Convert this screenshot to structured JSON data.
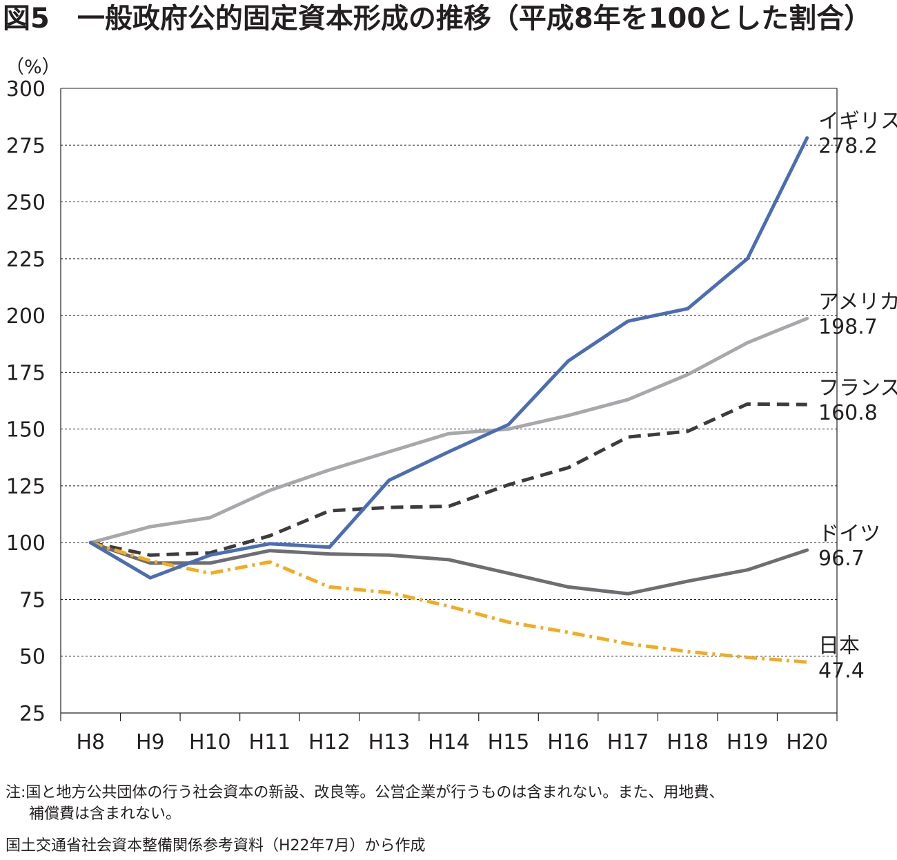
{
  "title": "図5　一般政府公的固定資本形成の推移（平成8年を100とした割合）",
  "notes": [
    "注:国と地方公共団体の行う社会資本の新設、改良等。公営企業が行うものは含まれない。また、用地費、",
    "補償費は含まれない。",
    "国土交通省社会資本整備関係参考資料（H22年7月）から作成"
  ],
  "chart_data": {
    "type": "line",
    "title": "図5　一般政府公的固定資本形成の推移（平成8年を100とした割合）",
    "ylabel": "（%）",
    "xlabel": "",
    "ylim": [
      25,
      300
    ],
    "yticks": [
      "300",
      "275",
      "250",
      "225",
      "200",
      "175",
      "150",
      "125",
      "100",
      "75",
      "50",
      "25"
    ],
    "grid": "horizontal dashed",
    "legend": "end-of-line labels on right",
    "x": [
      "H8",
      "H9",
      "H10",
      "H11",
      "H12",
      "H13",
      "H14",
      "H15",
      "H16",
      "H17",
      "H18",
      "H19",
      "H20"
    ],
    "series": [
      {
        "name": "アメリカ",
        "end_label": "198.7",
        "color": "#a6a8ab",
        "style": "solid",
        "values": [
          100,
          107,
          111,
          123,
          132,
          140,
          148,
          150,
          156,
          163,
          174,
          188,
          198.7
        ]
      },
      {
        "name": "フランス",
        "end_label": "160.8",
        "color": "#3c3c3c",
        "style": "dashed",
        "values": [
          100,
          94.5,
          95.5,
          103,
          114,
          115.5,
          116,
          125.5,
          133,
          146.5,
          149,
          161,
          160.8
        ]
      },
      {
        "name": "ドイツ",
        "end_label": "96.7",
        "color": "#6d6e71",
        "style": "solid",
        "values": [
          100,
          91,
          91,
          96.5,
          95,
          94.5,
          92.5,
          86.5,
          80.5,
          77.5,
          83,
          88,
          96.7
        ]
      },
      {
        "name": "日本",
        "end_label": "47.4",
        "color": "#f4ab1c",
        "style": "dashdot",
        "values": [
          100,
          92,
          86.5,
          91.5,
          80.5,
          78,
          72,
          65,
          60.5,
          55.5,
          52,
          49.5,
          47.4
        ]
      },
      {
        "name": "イギリス",
        "end_label": "278.2",
        "color": "#4a6db5",
        "style": "solid",
        "values": [
          100,
          84.5,
          94.5,
          99.5,
          98,
          127.5,
          140,
          152,
          180,
          197.5,
          203,
          225,
          278.2
        ]
      }
    ]
  }
}
